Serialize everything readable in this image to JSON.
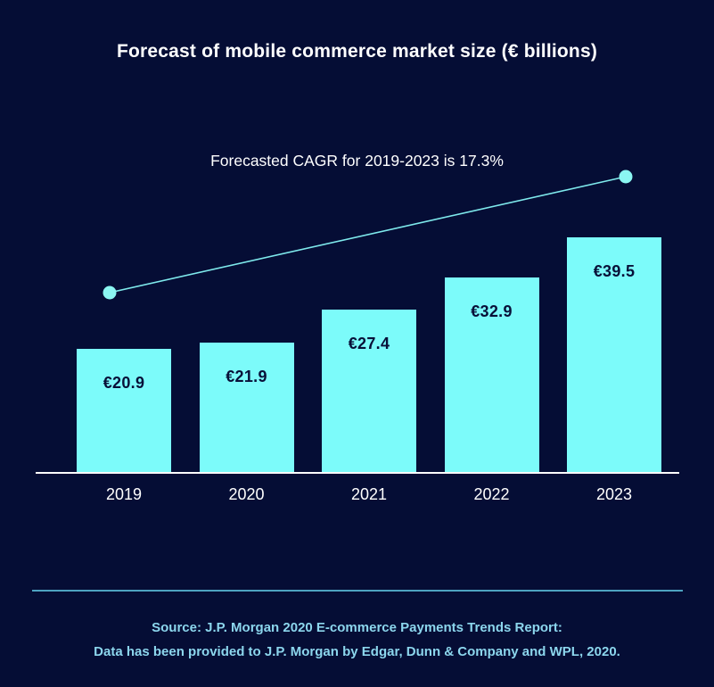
{
  "title": "Forecast of mobile commerce market size (€ billions)",
  "annotation": "Forecasted CAGR for 2019-2023 is 17.3%",
  "chart_data": {
    "type": "bar",
    "title": "Forecast of mobile commerce market size (€ billions)",
    "annotation": "Forecasted CAGR for 2019-2023 is 17.3%",
    "cagr_percent": 17.3,
    "categories": [
      "2019",
      "2020",
      "2021",
      "2022",
      "2023"
    ],
    "values": [
      20.9,
      21.9,
      27.4,
      32.9,
      39.5
    ],
    "value_labels": [
      "€20.9",
      "€21.9",
      "€27.4",
      "€32.9",
      "€39.5"
    ],
    "unit": "€ billions",
    "ylim": [
      0,
      44
    ],
    "grid": false,
    "legend": false,
    "trend_line": true,
    "colors": {
      "background": "#050D35",
      "bar": "#7CFBFA",
      "bar_label": "#081038",
      "axis_line": "#FFFFFF",
      "trend_line": "#7EE9EC",
      "trend_dot": "#8BF6F2",
      "divider": "#4EA3C1",
      "source_text": "#8CD6ED",
      "title_text": "#FFFFFF"
    }
  },
  "source": {
    "line1": "Source: J.P. Morgan 2020 E-commerce Payments Trends Report:",
    "line2": "Data has been provided to J.P. Morgan by Edgar, Dunn & Company and WPL, 2020."
  }
}
